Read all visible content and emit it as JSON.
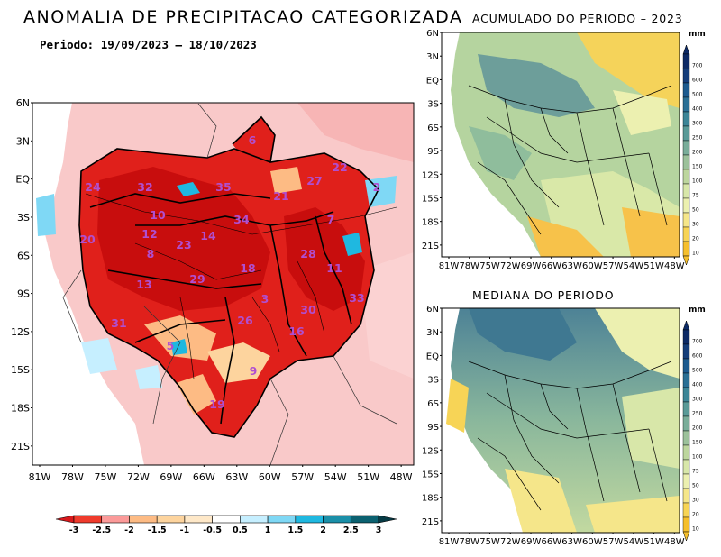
{
  "main_map": {
    "title": "ANOMALIA DE PRECIPITACAO CATEGORIZADA",
    "subtitle": "Periodo: 19/09/2023 – 18/10/2023",
    "lat_labels": [
      "6N",
      "3N",
      "EQ",
      "3S",
      "6S",
      "9S",
      "12S",
      "15S",
      "18S",
      "21S"
    ],
    "lon_labels": [
      "81W",
      "78W",
      "75W",
      "72W",
      "69W",
      "66W",
      "63W",
      "60W",
      "57W",
      "54W",
      "51W",
      "48W"
    ],
    "basin_numbers": [
      "6",
      "24",
      "32",
      "35",
      "21",
      "27",
      "22",
      "2",
      "10",
      "34",
      "7",
      "20",
      "12",
      "23",
      "14",
      "8",
      "18",
      "28",
      "11",
      "13",
      "29",
      "3",
      "30",
      "33",
      "31",
      "26",
      "16",
      "5",
      "9",
      "19"
    ],
    "colorbar": {
      "tick_labels": [
        "-3",
        "-2.5",
        "-2",
        "-1.5",
        "-1",
        "-0.5",
        "0.5",
        "1",
        "1.5",
        "2",
        "2.5",
        "3"
      ],
      "colors": [
        "#d7191c",
        "#ef3b2c",
        "#fb9a99",
        "#fdbb84",
        "#fdd49e",
        "#fee8c8",
        "#ffffff",
        "#c6efff",
        "#7fd8f5",
        "#1fb8e0",
        "#1a8fa8",
        "#0b6170",
        "#073b45"
      ]
    }
  },
  "acumulado_map": {
    "title": "ACUMULADO DO PERIODO – 2023",
    "lat_labels": [
      "6N",
      "3N",
      "EQ",
      "3S",
      "6S",
      "9S",
      "12S",
      "15S",
      "18S",
      "21S"
    ],
    "lon_labels": [
      "81W",
      "78W",
      "75W",
      "72W",
      "69W",
      "66W",
      "63W",
      "60W",
      "57W",
      "54W",
      "51W",
      "48W"
    ]
  },
  "mediana_map": {
    "title": "MEDIANA DO PERIODO",
    "lat_labels": [
      "6N",
      "3N",
      "EQ",
      "3S",
      "6S",
      "9S",
      "12S",
      "15S",
      "18S",
      "21S"
    ],
    "lon_labels": [
      "81W",
      "78W",
      "75W",
      "72W",
      "69W",
      "66W",
      "63W",
      "60W",
      "57W",
      "54W",
      "51W",
      "48W"
    ]
  },
  "mm_colorbar": {
    "unit": "mm",
    "tick_labels": [
      "700",
      "600",
      "500",
      "400",
      "300",
      "250",
      "200",
      "150",
      "100",
      "75",
      "50",
      "30",
      "20",
      "10"
    ],
    "colors": [
      "#0d2a66",
      "#153d7a",
      "#1d5a8f",
      "#2b6f95",
      "#3d8597",
      "#5a9a98",
      "#7aad9a",
      "#9cc19b",
      "#bdd69e",
      "#d8e7a9",
      "#ecf0b0",
      "#f5e68a",
      "#f7d456",
      "#f5bf2c"
    ]
  }
}
